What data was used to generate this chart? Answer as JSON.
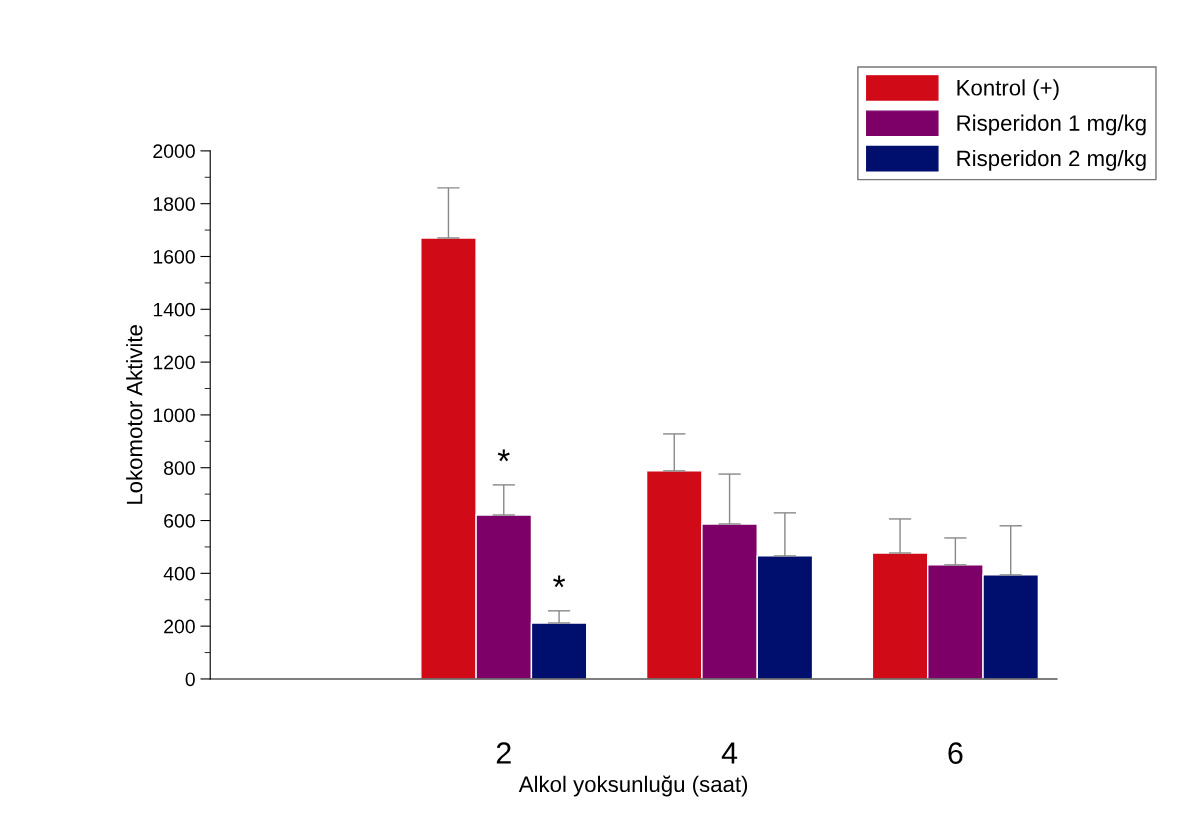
{
  "chart_data": {
    "type": "bar",
    "xlabel": "Alkol yoksunluğu (saat)",
    "ylabel": "Lokomotor Aktivite",
    "categories": [
      "2",
      "4",
      "6"
    ],
    "series": [
      {
        "name": "Kontrol (+)",
        "color": "#d10a17",
        "values": [
          1670,
          788,
          477
        ],
        "errors": [
          [
            1670,
            1860
          ],
          [
            788,
            928
          ],
          [
            477,
            606
          ]
        ]
      },
      {
        "name": "Risperidon 1 mg/kg",
        "color": "#7d0068",
        "values": [
          621,
          587,
          432
        ],
        "errors": [
          [
            621,
            735
          ],
          [
            587,
            776
          ],
          [
            432,
            534
          ]
        ]
      },
      {
        "name": "Risperidon 2 mg/kg",
        "color": "#000e6e",
        "values": [
          212,
          466,
          394
        ],
        "errors": [
          [
            212,
            258
          ],
          [
            466,
            629
          ],
          [
            394,
            580
          ]
        ]
      }
    ],
    "ylim": [
      0,
      2000
    ],
    "yticks": [
      0,
      200,
      400,
      600,
      800,
      1000,
      1200,
      1400,
      1600,
      1800,
      2000
    ],
    "grid": false,
    "legend": "top right",
    "annotations": [
      "*",
      "*"
    ]
  }
}
